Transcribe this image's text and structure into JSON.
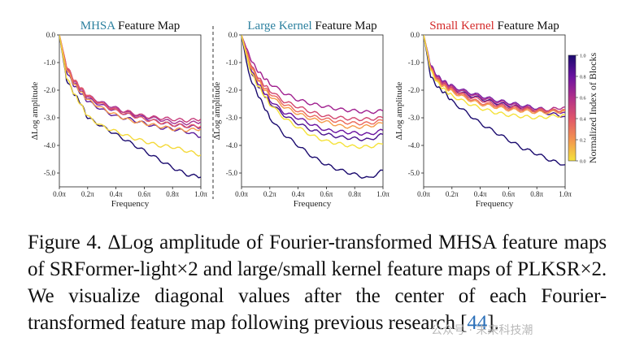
{
  "figure": {
    "panels": [
      {
        "title_colored": "MHSA",
        "title_rest": " Feature Map",
        "title_color": "#2a7f9e"
      },
      {
        "title_colored": "Large Kernel",
        "title_rest": " Feature Map",
        "title_color": "#2a7f9e"
      },
      {
        "title_colored": "Small Kernel",
        "title_rest": " Feature Map",
        "title_color": "#d42a2a"
      }
    ],
    "ylabel": "ΔLog amplitude",
    "xlabel": "Frequency",
    "x_ticks": [
      "0.0π",
      "0.2π",
      "0.4π",
      "0.6π",
      "0.8π",
      "1.0π"
    ],
    "y_ticks": [
      "0.0",
      "-1.0",
      "-2.0",
      "-3.0",
      "-4.0",
      "-5.0"
    ],
    "colorbar": {
      "label": "Normalized Index of Blocks",
      "ticks": [
        "1.0",
        "0.8",
        "0.6",
        "0.4",
        "0.2",
        "0.0"
      ],
      "colors": [
        "#1a0a6e",
        "#6a12a0",
        "#b0308a",
        "#e0566a",
        "#f39550",
        "#f5e23a"
      ]
    }
  },
  "chart_data": [
    {
      "type": "line",
      "title": "MHSA Feature Map",
      "xlabel": "Frequency",
      "ylabel": "ΔLog amplitude",
      "xlim": [
        0,
        1
      ],
      "ylim": [
        -5.5,
        0
      ],
      "x": [
        0,
        0.05,
        0.1,
        0.15,
        0.2,
        0.3,
        0.4,
        0.5,
        0.6,
        0.7,
        0.8,
        0.9,
        1.0
      ],
      "series": [
        {
          "color": "#1a0a6e",
          "values": [
            0,
            -1.6,
            -2.1,
            -2.45,
            -3.0,
            -3.3,
            -3.6,
            -3.9,
            -4.2,
            -4.5,
            -4.8,
            -5.05,
            -5.15
          ]
        },
        {
          "color": "#5b1a9c",
          "values": [
            0,
            -1.3,
            -1.8,
            -2.1,
            -2.4,
            -2.7,
            -2.95,
            -3.05,
            -3.2,
            -3.35,
            -3.4,
            -3.5,
            -3.7
          ]
        },
        {
          "color": "#7b1fa2",
          "values": [
            0,
            -1.2,
            -1.7,
            -2.0,
            -2.3,
            -2.55,
            -2.75,
            -2.9,
            -3.0,
            -3.15,
            -3.25,
            -3.3,
            -3.35
          ]
        },
        {
          "color": "#a83291",
          "values": [
            0,
            -1.1,
            -1.6,
            -1.9,
            -2.2,
            -2.45,
            -2.65,
            -2.85,
            -2.95,
            -3.05,
            -3.15,
            -3.2,
            -3.15
          ]
        },
        {
          "color": "#c8407e",
          "values": [
            0,
            -1.15,
            -1.65,
            -1.95,
            -2.25,
            -2.5,
            -2.7,
            -2.8,
            -2.95,
            -3.0,
            -3.05,
            -3.1,
            -3.05
          ]
        },
        {
          "color": "#e35c68",
          "values": [
            0,
            -1.1,
            -1.6,
            -1.9,
            -2.2,
            -2.5,
            -2.75,
            -2.9,
            -3.05,
            -3.15,
            -3.25,
            -3.3,
            -3.3
          ]
        },
        {
          "color": "#f39a4c",
          "values": [
            0,
            -1.2,
            -1.75,
            -2.05,
            -2.35,
            -2.65,
            -2.9,
            -3.1,
            -3.2,
            -3.3,
            -3.4,
            -3.45,
            -3.4
          ]
        },
        {
          "color": "#f4d93a",
          "values": [
            0,
            -1.5,
            -2.1,
            -2.5,
            -2.95,
            -3.3,
            -3.5,
            -3.7,
            -3.85,
            -4.0,
            -4.05,
            -4.2,
            -4.35
          ]
        }
      ]
    },
    {
      "type": "line",
      "title": "Large Kernel Feature Map",
      "xlabel": "Frequency",
      "ylabel": "ΔLog amplitude",
      "xlim": [
        0,
        1
      ],
      "ylim": [
        -5.5,
        0
      ],
      "x": [
        0,
        0.05,
        0.1,
        0.15,
        0.2,
        0.3,
        0.4,
        0.5,
        0.6,
        0.7,
        0.8,
        0.9,
        1.0
      ],
      "series": [
        {
          "color": "#1a0a6e",
          "values": [
            0,
            -1.4,
            -2.0,
            -2.5,
            -3.0,
            -3.6,
            -4.0,
            -4.4,
            -4.7,
            -4.9,
            -5.05,
            -5.2,
            -4.9
          ]
        },
        {
          "color": "#4a138f",
          "values": [
            0,
            -1.1,
            -1.7,
            -2.1,
            -2.45,
            -2.9,
            -3.2,
            -3.45,
            -3.6,
            -3.7,
            -3.75,
            -3.8,
            -3.6
          ]
        },
        {
          "color": "#6a12a0",
          "values": [
            0,
            -1.0,
            -1.6,
            -2.0,
            -2.35,
            -2.8,
            -3.0,
            -3.25,
            -3.45,
            -3.5,
            -3.55,
            -3.6,
            -3.45
          ]
        },
        {
          "color": "#a0208f",
          "values": [
            0,
            -0.7,
            -1.2,
            -1.5,
            -1.75,
            -2.1,
            -2.35,
            -2.5,
            -2.6,
            -2.7,
            -2.75,
            -2.8,
            -2.75
          ]
        },
        {
          "color": "#d2466f",
          "values": [
            0,
            -0.85,
            -1.4,
            -1.75,
            -2.0,
            -2.4,
            -2.6,
            -2.8,
            -2.95,
            -3.0,
            -3.05,
            -3.05,
            -3.0
          ]
        },
        {
          "color": "#ec6a5c",
          "values": [
            0,
            -0.9,
            -1.45,
            -1.85,
            -2.1,
            -2.5,
            -2.75,
            -2.95,
            -3.05,
            -3.15,
            -3.2,
            -3.2,
            -3.1
          ]
        },
        {
          "color": "#f59a4a",
          "values": [
            0,
            -0.95,
            -1.5,
            -1.9,
            -2.2,
            -2.6,
            -2.85,
            -3.05,
            -3.15,
            -3.3,
            -3.35,
            -3.3,
            -3.2
          ]
        },
        {
          "color": "#f5e23a",
          "values": [
            0,
            -1.1,
            -1.7,
            -2.1,
            -2.5,
            -3.0,
            -3.35,
            -3.65,
            -3.85,
            -3.95,
            -4.05,
            -4.05,
            -3.95
          ]
        }
      ]
    },
    {
      "type": "line",
      "title": "Small Kernel Feature Map",
      "xlabel": "Frequency",
      "ylabel": "ΔLog amplitude",
      "xlim": [
        0,
        1
      ],
      "ylim": [
        -5.5,
        0
      ],
      "x": [
        0,
        0.05,
        0.1,
        0.15,
        0.2,
        0.3,
        0.4,
        0.5,
        0.6,
        0.7,
        0.8,
        0.9,
        1.0
      ],
      "series": [
        {
          "color": "#1a0a6e",
          "values": [
            0,
            -1.5,
            -1.9,
            -2.1,
            -2.4,
            -2.8,
            -3.2,
            -3.5,
            -3.8,
            -4.1,
            -4.3,
            -4.55,
            -4.7
          ]
        },
        {
          "color": "#4a138f",
          "values": [
            0,
            -1.2,
            -1.6,
            -1.8,
            -1.95,
            -2.15,
            -2.3,
            -2.45,
            -2.55,
            -2.65,
            -2.75,
            -2.85,
            -2.95
          ]
        },
        {
          "color": "#7b1fa2",
          "values": [
            0,
            -1.1,
            -1.5,
            -1.7,
            -1.85,
            -2.05,
            -2.2,
            -2.35,
            -2.45,
            -2.55,
            -2.65,
            -2.75,
            -2.8
          ]
        },
        {
          "color": "#b0308a",
          "values": [
            0,
            -1.15,
            -1.55,
            -1.75,
            -1.9,
            -2.1,
            -2.25,
            -2.4,
            -2.5,
            -2.6,
            -2.7,
            -2.7,
            -2.6
          ]
        },
        {
          "color": "#d24a72",
          "values": [
            0,
            -1.2,
            -1.6,
            -1.8,
            -1.95,
            -2.2,
            -2.35,
            -2.5,
            -2.6,
            -2.65,
            -2.7,
            -2.75,
            -2.7
          ]
        },
        {
          "color": "#ec6a5c",
          "values": [
            0,
            -1.2,
            -1.65,
            -1.85,
            -2.0,
            -2.25,
            -2.45,
            -2.55,
            -2.65,
            -2.7,
            -2.75,
            -2.75,
            -2.7
          ]
        },
        {
          "color": "#f59a4a",
          "values": [
            0,
            -1.25,
            -1.7,
            -1.9,
            -2.05,
            -2.3,
            -2.5,
            -2.6,
            -2.7,
            -2.75,
            -2.8,
            -2.8,
            -2.75
          ]
        },
        {
          "color": "#f5e23a",
          "values": [
            0,
            -1.3,
            -1.75,
            -2.0,
            -2.2,
            -2.45,
            -2.65,
            -2.8,
            -2.9,
            -2.95,
            -3.0,
            -2.95,
            -2.9
          ]
        }
      ]
    }
  ],
  "caption": {
    "text": "Figure 4. ΔLog amplitude of Fourier-transformed MHSA feature maps of SRFormer-light×2 and large/small kernel feature maps of PLKSR×2. We visualize diagonal values after the center of each Fourier-transformed feature map following previous research [",
    "ref": "44",
    "end": "]."
  },
  "watermark": "公众号 · 末来科技潮"
}
